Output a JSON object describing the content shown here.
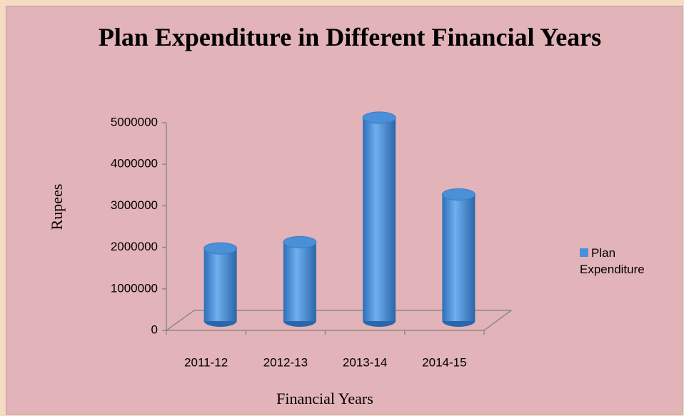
{
  "chart_data": {
    "type": "bar3d",
    "title": "Plan Expenditure in Different Financial Years",
    "x_label": "Financial Years",
    "y_label": "Rupees",
    "categories": [
      "2011-12",
      "2012-13",
      "2013-14",
      "2014-15"
    ],
    "series": [
      {
        "name": "Plan Expenditure",
        "color": "#4a90d9",
        "values": [
          1750000,
          1900000,
          4900000,
          3050000
        ]
      }
    ],
    "ylim": [
      0,
      5000000
    ],
    "yticks": [
      0,
      1000000,
      2000000,
      3000000,
      4000000,
      5000000
    ],
    "grid": false,
    "legend": "right"
  }
}
